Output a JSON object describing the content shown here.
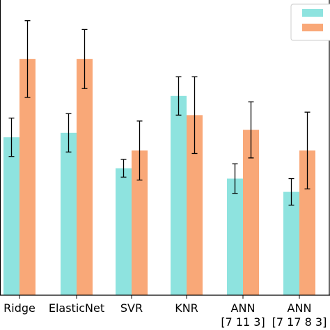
{
  "chart_data": {
    "type": "bar",
    "categories": [
      [
        "Ridge"
      ],
      [
        "ElasticNet"
      ],
      [
        "SVR"
      ],
      [
        "KNR"
      ],
      [
        "ANN",
        "[7 11 3]"
      ],
      [
        "ANN",
        "[7 17 8 3]"
      ]
    ],
    "ylim": [
      0,
      1.0
    ],
    "grid": false,
    "legend_position": "top-right",
    "series": [
      {
        "color": "#8ee3df",
        "values": [
          0.535,
          0.55,
          0.43,
          0.675,
          0.395,
          0.35
        ],
        "errors": [
          0.065,
          0.065,
          0.03,
          0.065,
          0.05,
          0.045
        ]
      },
      {
        "color": "#f9a878",
        "values": [
          0.8,
          0.8,
          0.49,
          0.61,
          0.56,
          0.49
        ],
        "errors": [
          0.13,
          0.1,
          0.1,
          0.13,
          0.095,
          0.13
        ]
      }
    ]
  }
}
